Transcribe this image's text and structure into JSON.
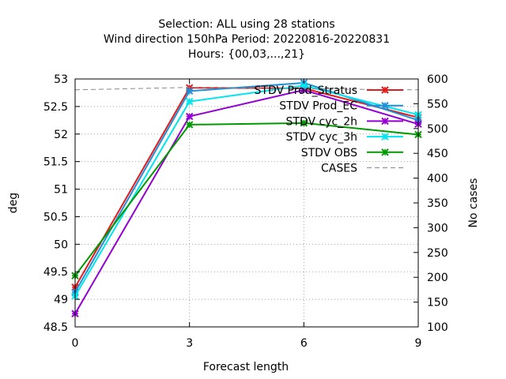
{
  "chart_data": {
    "type": "line",
    "title": [
      "Selection: ALL using    28 stations",
      "Wind direction 150hPa   Period: 20220816-20220831",
      "Hours: {00,03,...,21}"
    ],
    "xlabel": "Forecast length",
    "ylabel": "deg",
    "y2label": "No cases",
    "x": [
      0,
      3,
      6,
      9
    ],
    "xlim": [
      0,
      9
    ],
    "xticks": [
      "0",
      "3",
      "6",
      "9"
    ],
    "ylim": [
      48.5,
      53
    ],
    "yticks": [
      "48.5",
      "49",
      "49.5",
      "50",
      "50.5",
      "51",
      "51.5",
      "52",
      "52.5",
      "53"
    ],
    "y2lim": [
      100,
      600
    ],
    "y2ticks": [
      "100",
      "150",
      "200",
      "250",
      "300",
      "350",
      "400",
      "450",
      "500",
      "550",
      "600"
    ],
    "grid": true,
    "legend_position": "top-right",
    "series": [
      {
        "name": "STDV Prod_Stratus",
        "color": "#e41a1c",
        "marker": "x",
        "values": [
          49.22,
          52.84,
          52.83,
          52.3
        ]
      },
      {
        "name": "STDV Prod_EC",
        "color": "#1e90d8",
        "marker": "x",
        "values": [
          49.13,
          52.78,
          52.93,
          52.25
        ]
      },
      {
        "name": "STDV cyc_2h",
        "color": "#9400d3",
        "marker": "x",
        "values": [
          48.74,
          52.32,
          52.8,
          52.18
        ]
      },
      {
        "name": "STDV cyc_3h",
        "color": "#00e5ee",
        "marker": "x",
        "values": [
          49.06,
          52.59,
          52.88,
          52.35
        ]
      },
      {
        "name": "STDV OBS",
        "color": "#009900",
        "marker": "x",
        "values": [
          49.43,
          52.17,
          52.2,
          51.99
        ]
      },
      {
        "name": "CASES",
        "color": "#888888",
        "dashed": true,
        "axis": "y2",
        "values": [
          578,
          583,
          580,
          578
        ]
      }
    ]
  }
}
